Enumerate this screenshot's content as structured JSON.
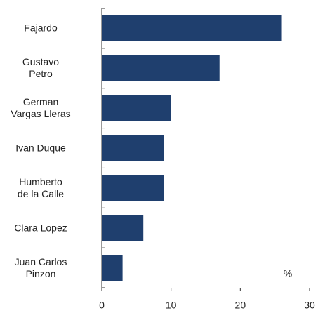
{
  "chart_data": {
    "type": "bar",
    "orientation": "horizontal",
    "categories": [
      "Fajardo",
      "Gustavo\nPetro",
      "German\nVargas Lleras",
      "Ivan Duque",
      "Humberto\nde la Calle",
      "Clara Lopez",
      "Juan Carlos\nPinzon"
    ],
    "values": [
      26,
      17,
      10,
      9,
      9,
      6,
      3
    ],
    "color": "#1f3f6e",
    "xlim": [
      0,
      30
    ],
    "xticks": [
      0,
      10,
      20,
      30
    ],
    "annotation": "%"
  }
}
